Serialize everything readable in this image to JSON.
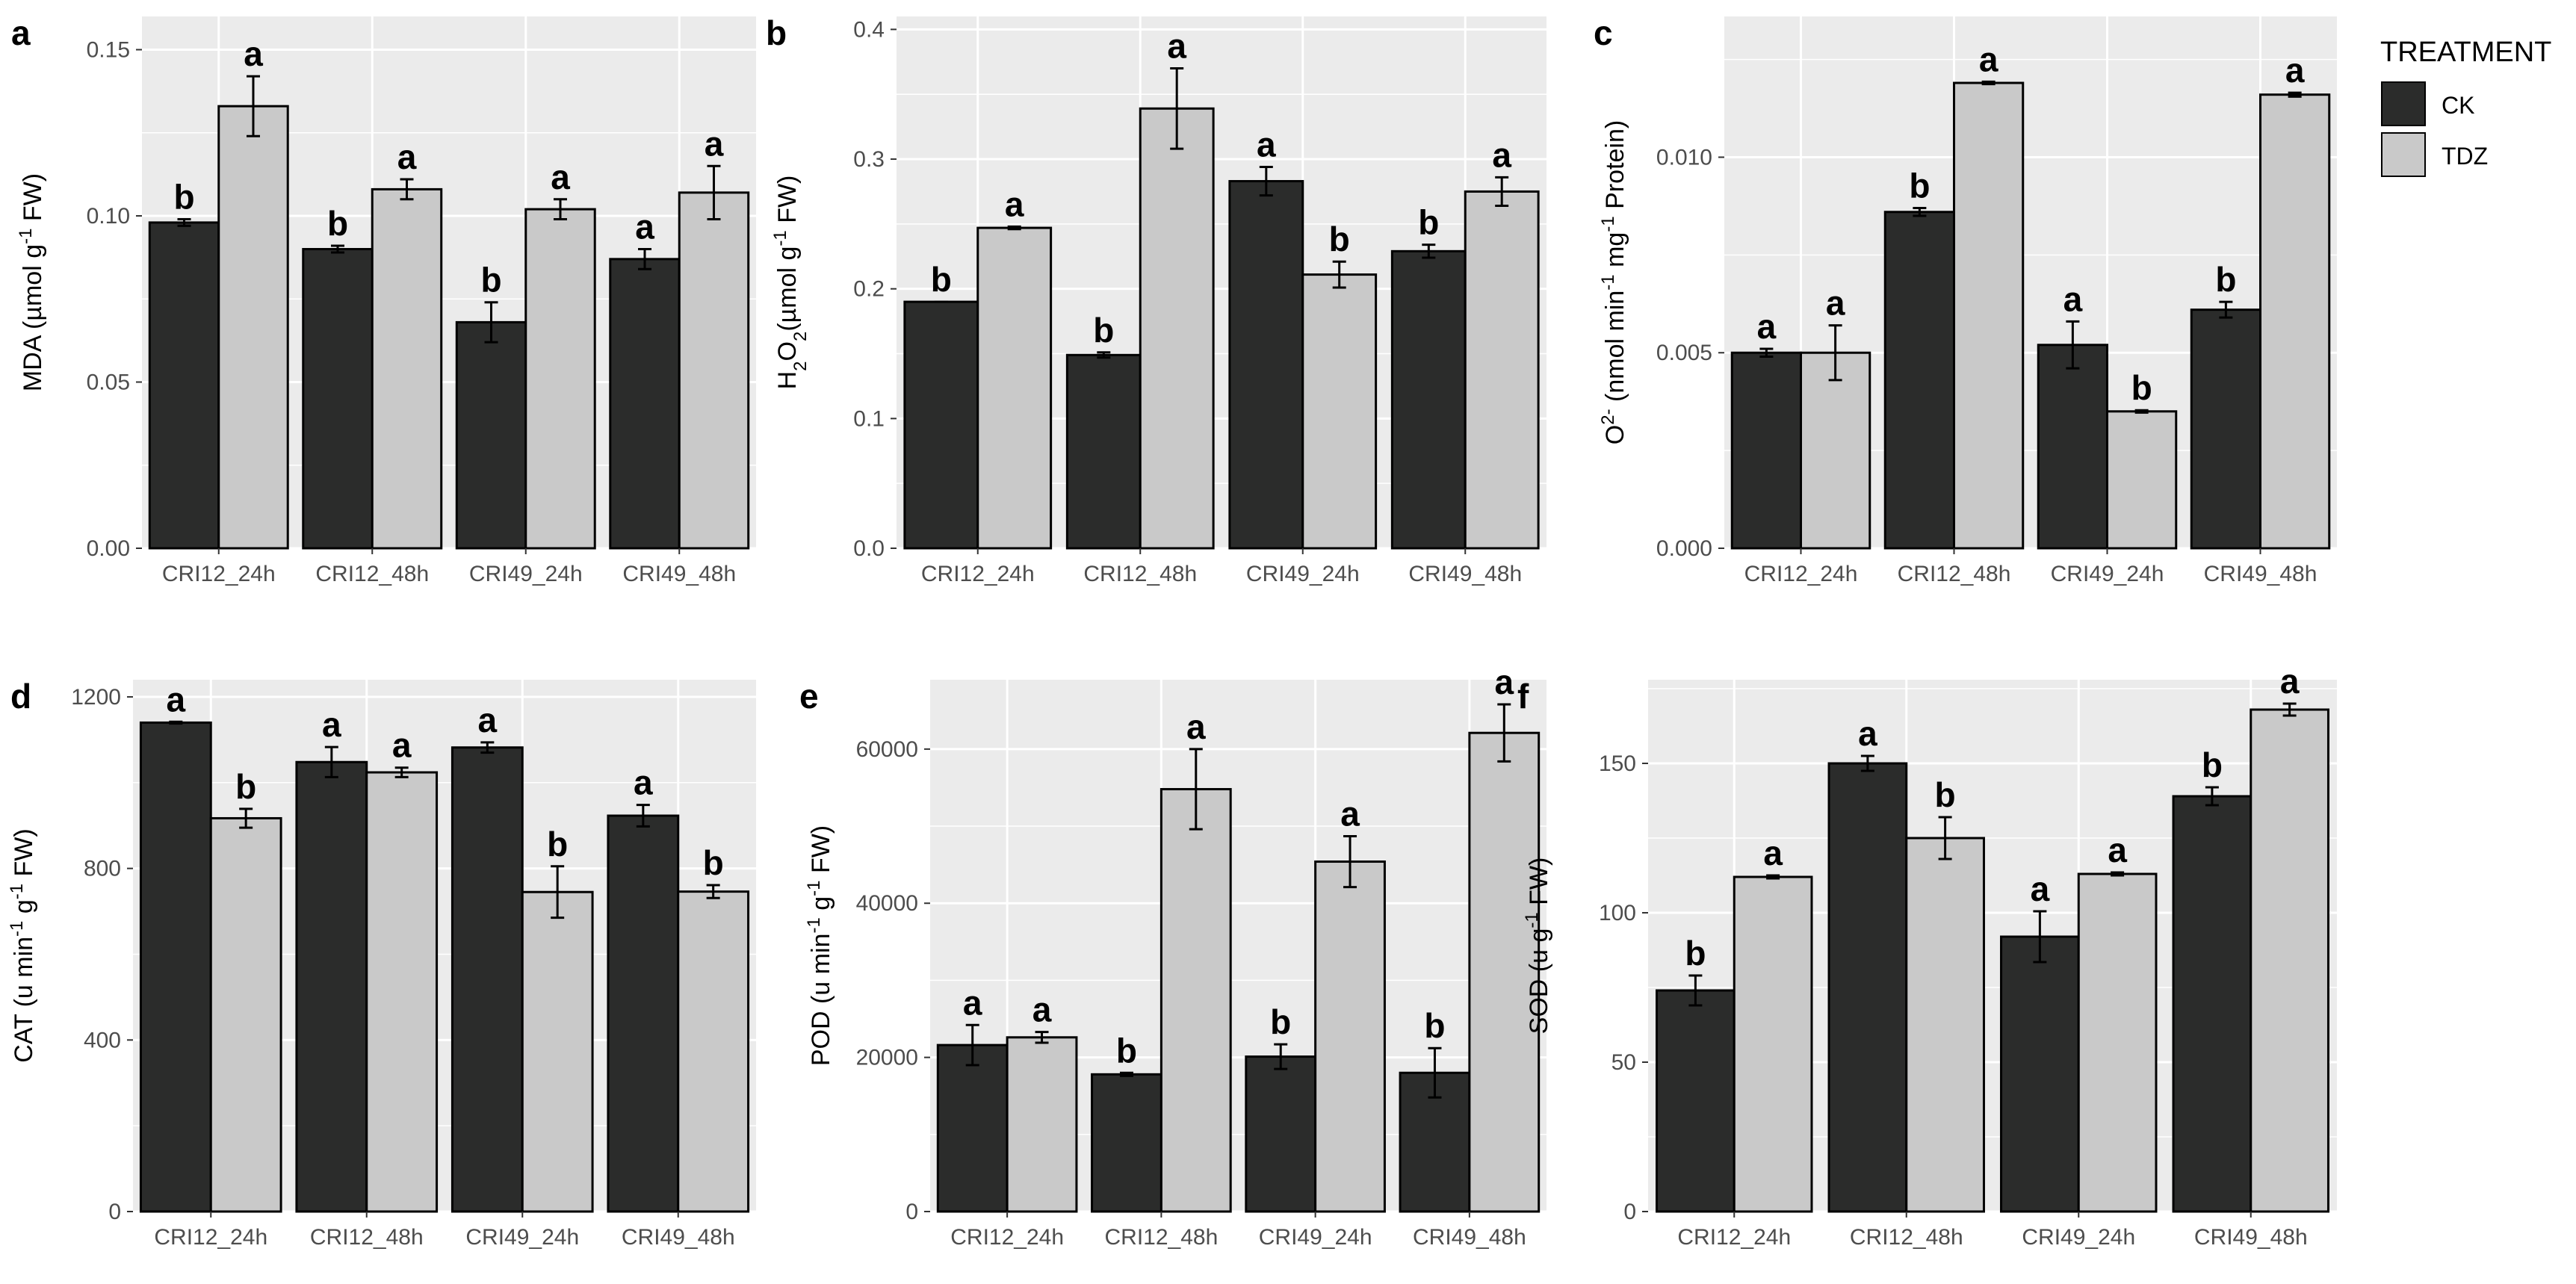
{
  "legend": {
    "title": "TREATMENT",
    "entries": [
      {
        "name": "CK",
        "color": "#2b2c2b"
      },
      {
        "name": "TDZ",
        "color": "#c9c9c9"
      }
    ]
  },
  "colors": {
    "panel_bg": "#ebebeb",
    "grid": "#ffffff",
    "ck": "#2b2c2b",
    "tdz": "#c9c9c9"
  },
  "chart_data": [
    {
      "panel": "a",
      "type": "bar",
      "ylabel": {
        "main": "MDA (µmol g",
        "sup": "-1",
        "tail": " FW)"
      },
      "categories": [
        "CRI12_24h",
        "CRI12_48h",
        "CRI49_24h",
        "CRI49_48h"
      ],
      "ylim": [
        0,
        0.16
      ],
      "yticks": [
        0,
        0.05,
        0.1,
        0.15
      ],
      "ytick_labels": [
        "0.00",
        "0.05",
        "0.10",
        "0.15"
      ],
      "series": [
        {
          "name": "CK",
          "values": [
            0.098,
            0.09,
            0.068,
            0.087
          ],
          "errors": [
            0.001,
            0.001,
            0.006,
            0.003
          ],
          "letters": [
            "b",
            "b",
            "b",
            "a"
          ]
        },
        {
          "name": "TDZ",
          "values": [
            0.133,
            0.108,
            0.102,
            0.107
          ],
          "errors": [
            0.009,
            0.003,
            0.003,
            0.008
          ],
          "letters": [
            "a",
            "a",
            "a",
            "a"
          ]
        }
      ]
    },
    {
      "panel": "b",
      "type": "bar",
      "ylabel": {
        "main": "H",
        "sub": "2",
        "main2": "O",
        "sub2": "2",
        "main3": "(µmol g",
        "sup": "-1",
        "tail": " FW)"
      },
      "categories": [
        "CRI12_24h",
        "CRI12_48h",
        "CRI49_24h",
        "CRI49_48h"
      ],
      "ylim": [
        0,
        0.41
      ],
      "yticks": [
        0,
        0.1,
        0.2,
        0.3,
        0.4
      ],
      "ytick_labels": [
        "0.0",
        "0.1",
        "0.2",
        "0.3",
        "0.4"
      ],
      "series": [
        {
          "name": "CK",
          "values": [
            0.19,
            0.149,
            0.283,
            0.229
          ],
          "errors": [
            0.0,
            0.002,
            0.011,
            0.005
          ],
          "letters": [
            "b",
            "b",
            "a",
            "b"
          ]
        },
        {
          "name": "TDZ",
          "values": [
            0.247,
            0.339,
            0.211,
            0.275
          ],
          "errors": [
            0.001,
            0.031,
            0.01,
            0.011
          ],
          "letters": [
            "a",
            "a",
            "b",
            "a"
          ]
        }
      ]
    },
    {
      "panel": "c",
      "type": "bar",
      "ylabel": {
        "main": "O",
        "sup": "2-",
        "main2": " (nmol min",
        "sup2": "-1",
        "main3": " mg",
        "sup3": "-1",
        "tail": " Protein)"
      },
      "categories": [
        "CRI12_24h",
        "CRI12_48h",
        "CRI49_24h",
        "CRI49_48h"
      ],
      "ylim": [
        0,
        0.0136
      ],
      "yticks": [
        0,
        0.005,
        0.01
      ],
      "ytick_labels": [
        "0.000",
        "0.005",
        "0.010"
      ],
      "series": [
        {
          "name": "CK",
          "values": [
            0.005,
            0.0086,
            0.0052,
            0.0061
          ],
          "errors": [
            0.0001,
            0.0001,
            0.0006,
            0.0002
          ],
          "letters": [
            "a",
            "b",
            "a",
            "b"
          ]
        },
        {
          "name": "TDZ",
          "values": [
            0.005,
            0.0119,
            0.0035,
            0.0116
          ],
          "errors": [
            0.0007,
            3e-05,
            3e-05,
            5e-05
          ],
          "letters": [
            "a",
            "a",
            "b",
            "a"
          ]
        }
      ]
    },
    {
      "panel": "d",
      "type": "bar",
      "ylabel": {
        "main": "CAT (u min",
        "sup": "-1",
        "main2": " g",
        "sup2": "-1",
        "tail": " FW)"
      },
      "categories": [
        "CRI12_24h",
        "CRI12_48h",
        "CRI49_24h",
        "CRI49_48h"
      ],
      "ylim": [
        0,
        1240
      ],
      "yticks": [
        0,
        400,
        800,
        1200
      ],
      "ytick_labels": [
        "0",
        "400",
        "800",
        "1200"
      ],
      "series": [
        {
          "name": "CK",
          "values": [
            1140,
            1048,
            1082,
            923
          ],
          "errors": [
            2,
            35,
            12,
            25
          ],
          "letters": [
            "a",
            "a",
            "a",
            "a"
          ]
        },
        {
          "name": "TDZ",
          "values": [
            917,
            1024,
            745,
            746
          ],
          "errors": [
            22,
            11,
            60,
            15
          ],
          "letters": [
            "b",
            "a",
            "b",
            "b"
          ]
        }
      ]
    },
    {
      "panel": "e",
      "type": "bar",
      "ylabel": {
        "main": "POD (u  min",
        "sup": "-1",
        "main2": " g",
        "sup2": "-1",
        "tail": " FW)"
      },
      "categories": [
        "CRI12_24h",
        "CRI12_48h",
        "CRI49_24h",
        "CRI49_48h"
      ],
      "ylim": [
        0,
        69000
      ],
      "yticks": [
        0,
        20000,
        40000,
        60000
      ],
      "ytick_labels": [
        "0",
        "20000",
        "40000",
        "60000"
      ],
      "series": [
        {
          "name": "CK",
          "values": [
            21600,
            17800,
            20100,
            18000
          ],
          "errors": [
            2600,
            200,
            1600,
            3200
          ],
          "letters": [
            "a",
            "b",
            "b",
            "b"
          ]
        },
        {
          "name": "TDZ",
          "values": [
            22600,
            54800,
            45400,
            62100
          ],
          "errors": [
            700,
            5200,
            3300,
            3700
          ],
          "letters": [
            "a",
            "a",
            "a",
            "a"
          ]
        }
      ]
    },
    {
      "panel": "f",
      "type": "bar",
      "ylabel": {
        "main": "SOD (u g",
        "sup": "-1",
        "tail": " FW)"
      },
      "categories": [
        "CRI12_24h",
        "CRI12_48h",
        "CRI49_24h",
        "CRI49_48h"
      ],
      "ylim": [
        0,
        178
      ],
      "yticks": [
        0,
        50,
        100,
        150
      ],
      "ytick_labels": [
        "0",
        "50",
        "100",
        "150"
      ],
      "series": [
        {
          "name": "CK",
          "values": [
            74,
            150,
            92,
            139
          ],
          "errors": [
            5,
            2.5,
            8.5,
            3
          ],
          "letters": [
            "b",
            "a",
            "a",
            "b"
          ]
        },
        {
          "name": "TDZ",
          "values": [
            112,
            125,
            113,
            168
          ],
          "errors": [
            0.5,
            7,
            0.5,
            2
          ],
          "letters": [
            "a",
            "b",
            "a",
            "a"
          ]
        }
      ]
    }
  ]
}
